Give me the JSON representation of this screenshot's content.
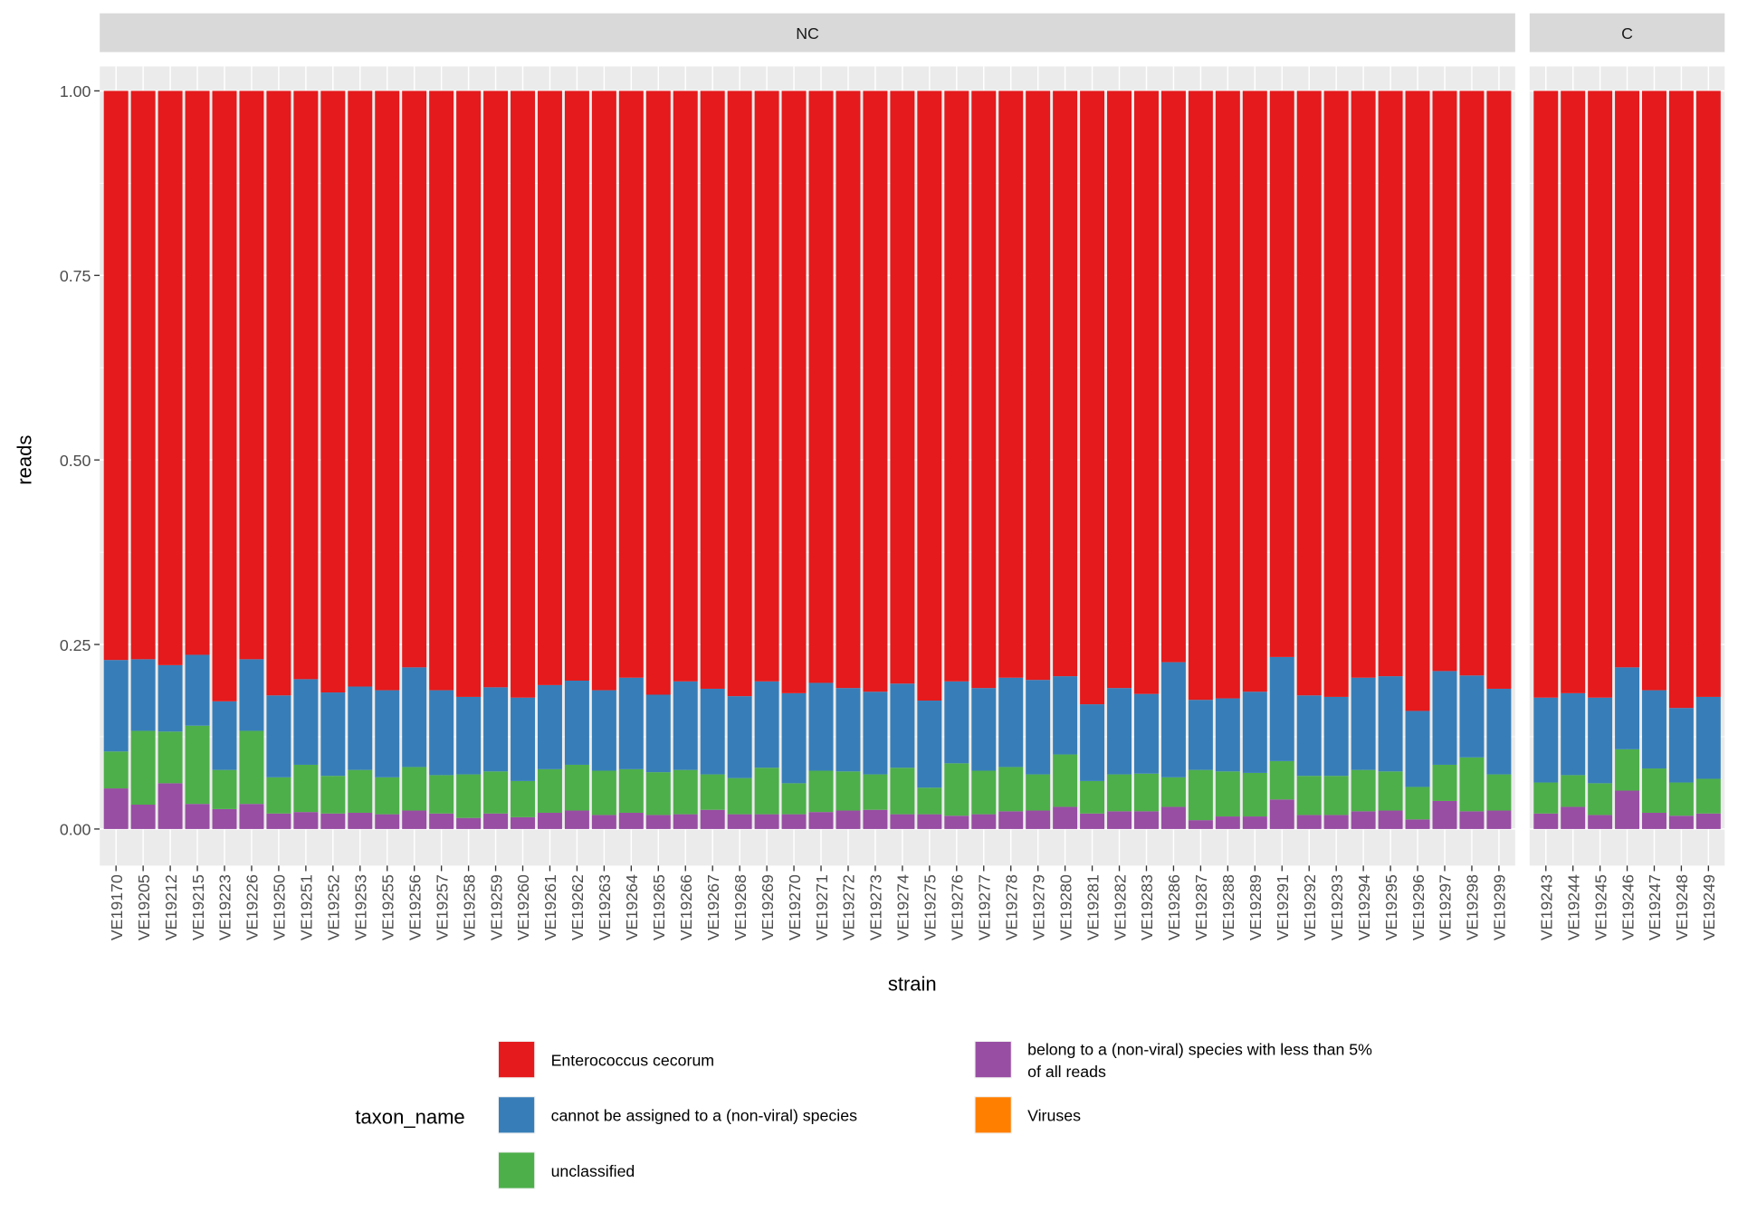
{
  "chart_data": {
    "type": "bar",
    "stacked": true,
    "x_label": "strain",
    "y_label": "reads",
    "y_range": [
      0,
      1
    ],
    "y_ticks": [
      "0.00",
      "0.25",
      "0.50",
      "0.75",
      "1.00"
    ],
    "grid": true,
    "legend": {
      "title": "taxon_name",
      "position": "bottom",
      "entries": [
        {
          "key": "cecorum",
          "label": "Enterococcus cecorum",
          "color": "#E41A1C"
        },
        {
          "key": "unassigned",
          "label": "cannot be assigned to a (non-viral) species",
          "color": "#377EB8"
        },
        {
          "key": "unclassified",
          "label": "unclassified",
          "color": "#4DAF4A"
        },
        {
          "key": "minor",
          "label": "belong to a (non-viral) species with less than 5% of all reads",
          "color": "#984EA3"
        },
        {
          "key": "viruses",
          "label": "Viruses",
          "color": "#FF7F00"
        }
      ]
    },
    "stack_order_bottom_to_top": [
      "minor",
      "unclassified",
      "unassigned",
      "cecorum"
    ],
    "panels": [
      {
        "title": "NC",
        "strains": [
          "VE19170",
          "VE19205",
          "VE19212",
          "VE19215",
          "VE19223",
          "VE19226",
          "VE19250",
          "VE19251",
          "VE19252",
          "VE19253",
          "VE19255",
          "VE19256",
          "VE19257",
          "VE19258",
          "VE19259",
          "VE19260",
          "VE19261",
          "VE19262",
          "VE19263",
          "VE19264",
          "VE19265",
          "VE19266",
          "VE19267",
          "VE19268",
          "VE19269",
          "VE19270",
          "VE19271",
          "VE19272",
          "VE19273",
          "VE19274",
          "VE19275",
          "VE19276",
          "VE19277",
          "VE19278",
          "VE19279",
          "VE19280",
          "VE19281",
          "VE19282",
          "VE19283",
          "VE19286",
          "VE19287",
          "VE19288",
          "VE19289",
          "VE19291",
          "VE19292",
          "VE19293",
          "VE19294",
          "VE19295",
          "VE19296",
          "VE19297",
          "VE19298",
          "VE19299"
        ],
        "cumulative_tops": {
          "minor": [
            0.055,
            0.033,
            0.062,
            0.034,
            0.027,
            0.034,
            0.021,
            0.023,
            0.021,
            0.022,
            0.02,
            0.025,
            0.021,
            0.015,
            0.021,
            0.016,
            0.022,
            0.025,
            0.019,
            0.022,
            0.019,
            0.02,
            0.026,
            0.02,
            0.02,
            0.02,
            0.023,
            0.025,
            0.026,
            0.02,
            0.02,
            0.018,
            0.02,
            0.024,
            0.025,
            0.03,
            0.021,
            0.024,
            0.024,
            0.03,
            0.012,
            0.017,
            0.017,
            0.04,
            0.019,
            0.019,
            0.024,
            0.025,
            0.013,
            0.038,
            0.024,
            0.025
          ],
          "unclassified": [
            0.105,
            0.133,
            0.132,
            0.14,
            0.08,
            0.133,
            0.07,
            0.087,
            0.072,
            0.08,
            0.07,
            0.084,
            0.073,
            0.074,
            0.078,
            0.065,
            0.081,
            0.087,
            0.079,
            0.081,
            0.077,
            0.08,
            0.074,
            0.069,
            0.083,
            0.062,
            0.079,
            0.078,
            0.074,
            0.083,
            0.056,
            0.089,
            0.079,
            0.084,
            0.074,
            0.101,
            0.065,
            0.074,
            0.075,
            0.07,
            0.08,
            0.078,
            0.076,
            0.092,
            0.072,
            0.072,
            0.08,
            0.078,
            0.057,
            0.087,
            0.097,
            0.074
          ],
          "unassigned": [
            0.229,
            0.23,
            0.222,
            0.236,
            0.173,
            0.23,
            0.181,
            0.203,
            0.185,
            0.193,
            0.188,
            0.219,
            0.188,
            0.179,
            0.192,
            0.178,
            0.195,
            0.201,
            0.188,
            0.205,
            0.182,
            0.2,
            0.19,
            0.18,
            0.2,
            0.184,
            0.198,
            0.191,
            0.186,
            0.197,
            0.174,
            0.2,
            0.191,
            0.205,
            0.202,
            0.207,
            0.169,
            0.191,
            0.183,
            0.226,
            0.175,
            0.177,
            0.186,
            0.233,
            0.181,
            0.179,
            0.205,
            0.207,
            0.16,
            0.214,
            0.208,
            0.19
          ],
          "cecorum": [
            1,
            1,
            1,
            1,
            1,
            1,
            1,
            1,
            1,
            1,
            1,
            1,
            1,
            1,
            1,
            1,
            1,
            1,
            1,
            1,
            1,
            1,
            1,
            1,
            1,
            1,
            1,
            1,
            1,
            1,
            1,
            1,
            1,
            1,
            1,
            1,
            1,
            1,
            1,
            1,
            1,
            1,
            1,
            1,
            1,
            1,
            1,
            1,
            1,
            1,
            1,
            1
          ]
        }
      },
      {
        "title": "C",
        "strains": [
          "VE19243",
          "VE19244",
          "VE19245",
          "VE19246",
          "VE19247",
          "VE19248",
          "VE19249"
        ],
        "cumulative_tops": {
          "minor": [
            0.021,
            0.03,
            0.019,
            0.052,
            0.022,
            0.018,
            0.021
          ],
          "unclassified": [
            0.063,
            0.073,
            0.062,
            0.108,
            0.082,
            0.063,
            0.068
          ],
          "unassigned": [
            0.178,
            0.184,
            0.178,
            0.219,
            0.188,
            0.164,
            0.179
          ],
          "cecorum": [
            1,
            1,
            1,
            1,
            1,
            1,
            1
          ]
        }
      }
    ]
  }
}
